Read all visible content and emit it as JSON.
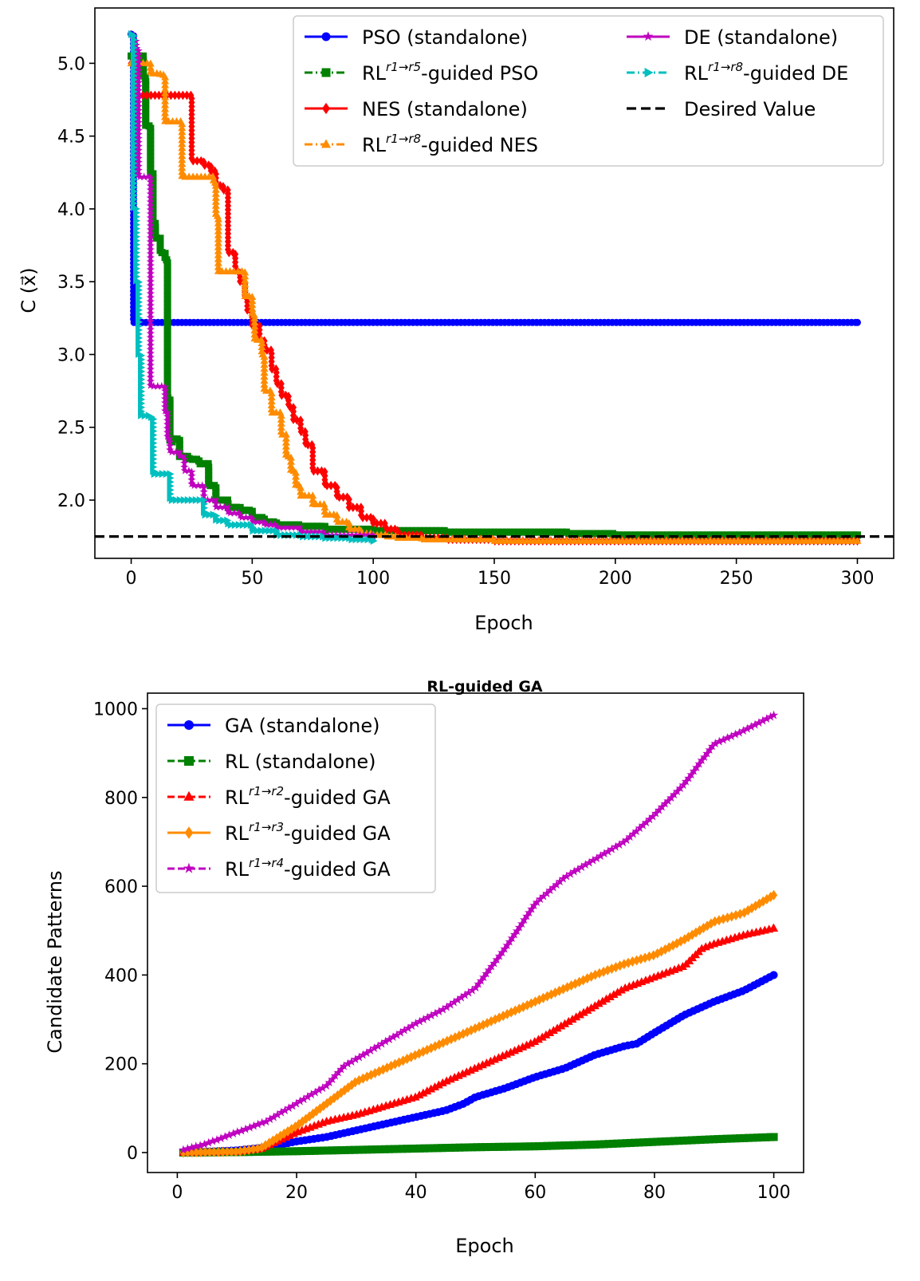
{
  "chart_data": [
    {
      "type": "line",
      "title": "",
      "xlabel": "Epoch",
      "ylabel": "C (x⃗)",
      "xlim": [
        -15,
        315
      ],
      "ylim": [
        1.6,
        5.38
      ],
      "xticks": [
        0,
        50,
        100,
        150,
        200,
        250,
        300
      ],
      "yticks": [
        2.0,
        2.5,
        3.0,
        3.5,
        4.0,
        4.5,
        5.0
      ],
      "ytick_labels": [
        "2.0",
        "2.5",
        "3.0",
        "3.5",
        "4.0",
        "4.5",
        "5.0"
      ],
      "grid": false,
      "legend_position": "top-right",
      "reference_line": {
        "name": "Desired Value",
        "y": 1.75,
        "color": "#000000",
        "style": "dashed"
      },
      "series": [
        {
          "name": "PSO (standalone)",
          "legend": {
            "base": "PSO (standalone)",
            "sup": "",
            "tail": ""
          },
          "color": "#0000ff",
          "style": "solid",
          "marker": "circle",
          "x": [
            0,
            1,
            300
          ],
          "y": [
            5.2,
            3.22,
            3.22
          ]
        },
        {
          "name": "RL r1→r5 -guided PSO",
          "legend": {
            "base": "RL",
            "sup": "r1→r5",
            "tail": "-guided PSO"
          },
          "color": "#008000",
          "style": "dashdot",
          "marker": "square",
          "x": [
            0,
            3,
            5,
            6,
            8,
            9,
            10,
            12,
            14,
            15,
            16,
            17,
            18,
            20,
            24,
            28,
            32,
            35,
            40,
            45,
            50,
            55,
            60,
            70,
            80,
            100,
            130,
            180,
            200,
            300
          ],
          "y": [
            5.05,
            5.05,
            4.9,
            4.57,
            4.25,
            3.9,
            3.8,
            3.7,
            3.65,
            2.7,
            2.4,
            2.42,
            2.42,
            2.3,
            2.28,
            2.25,
            2.1,
            2.0,
            1.95,
            1.93,
            1.88,
            1.85,
            1.83,
            1.82,
            1.8,
            1.79,
            1.78,
            1.77,
            1.76,
            1.76
          ]
        },
        {
          "name": "NES (standalone)",
          "legend": {
            "base": "NES (standalone)",
            "sup": "",
            "tail": ""
          },
          "color": "#ff0000",
          "style": "solid",
          "marker": "diamond",
          "x": [
            0,
            1,
            2,
            3,
            24,
            25,
            30,
            33,
            35,
            38,
            40,
            43,
            45,
            47,
            48,
            50,
            53,
            55,
            58,
            60,
            62,
            65,
            67,
            70,
            72,
            75,
            80,
            85,
            90,
            95,
            100,
            105,
            110,
            120,
            130,
            150,
            300
          ],
          "y": [
            5.0,
            4.96,
            4.78,
            4.78,
            4.78,
            4.33,
            4.3,
            4.26,
            4.16,
            4.13,
            3.7,
            3.57,
            3.5,
            3.4,
            3.3,
            3.2,
            3.1,
            3.03,
            2.9,
            2.8,
            2.72,
            2.64,
            2.55,
            2.47,
            2.38,
            2.2,
            2.1,
            2.02,
            1.95,
            1.88,
            1.84,
            1.8,
            1.76,
            1.74,
            1.73,
            1.72,
            1.72
          ]
        },
        {
          "name": "RL r1→r8 -guided NES",
          "legend": {
            "base": "RL",
            "sup": "r1→r8",
            "tail": "-guided NES"
          },
          "color": "#ff8c00",
          "style": "dashdot",
          "marker": "triangle-up",
          "x": [
            0,
            3,
            8,
            12,
            14,
            20,
            21,
            30,
            34,
            35,
            36,
            45,
            47,
            50,
            51,
            54,
            55,
            58,
            60,
            62,
            64,
            66,
            68,
            70,
            75,
            80,
            85,
            90,
            95,
            100,
            105,
            110,
            120,
            150,
            300
          ],
          "y": [
            5.0,
            5.0,
            4.93,
            4.92,
            4.6,
            4.6,
            4.22,
            4.22,
            4.18,
            3.95,
            3.57,
            3.57,
            3.4,
            3.27,
            3.1,
            3.0,
            2.75,
            2.6,
            2.6,
            2.45,
            2.3,
            2.2,
            2.1,
            2.03,
            1.97,
            1.9,
            1.85,
            1.8,
            1.77,
            1.76,
            1.75,
            1.74,
            1.73,
            1.72,
            1.72
          ]
        },
        {
          "name": "DE (standalone)",
          "legend": {
            "base": "DE (standalone)",
            "sup": "",
            "tail": ""
          },
          "color": "#bf00bf",
          "style": "solid",
          "marker": "star",
          "x": [
            0,
            1,
            2,
            3,
            7,
            8,
            12,
            14,
            15,
            16,
            20,
            22,
            25,
            30,
            35,
            40,
            45,
            50,
            55,
            60,
            70,
            80,
            100
          ],
          "y": [
            5.2,
            5.15,
            5.1,
            4.22,
            4.22,
            2.78,
            2.78,
            2.6,
            2.42,
            2.33,
            2.3,
            2.2,
            2.1,
            2.0,
            1.95,
            1.91,
            1.88,
            1.85,
            1.83,
            1.81,
            1.78,
            1.76,
            1.75
          ]
        },
        {
          "name": "RL r1→r8 -guided DE",
          "legend": {
            "base": "RL",
            "sup": "r1→r8",
            "tail": "-guided DE"
          },
          "color": "#00bfbf",
          "style": "dashdot",
          "marker": "triangle-right",
          "x": [
            0,
            1,
            2,
            3,
            4,
            8,
            9,
            15,
            16,
            22,
            30,
            35,
            40,
            50,
            60,
            70,
            80,
            90,
            100
          ],
          "y": [
            5.2,
            4.0,
            3.5,
            3.0,
            2.58,
            2.57,
            2.18,
            2.18,
            2.0,
            2.0,
            1.9,
            1.86,
            1.83,
            1.79,
            1.76,
            1.75,
            1.74,
            1.73,
            1.72
          ]
        }
      ]
    },
    {
      "type": "line",
      "title": "RL-guided GA",
      "xlabel": "Epoch",
      "ylabel": "Candidate Patterns",
      "xlim": [
        -5,
        105
      ],
      "ylim": [
        -45,
        1035
      ],
      "xticks": [
        0,
        20,
        40,
        60,
        80,
        100
      ],
      "yticks": [
        0,
        200,
        400,
        600,
        800,
        1000
      ],
      "grid": false,
      "legend_position": "top-left",
      "series": [
        {
          "name": "GA (standalone)",
          "legend": {
            "base": "GA (standalone)",
            "sup": "",
            "tail": ""
          },
          "color": "#0000ff",
          "style": "solid",
          "marker": "circle",
          "x": [
            1,
            10,
            15,
            20,
            25,
            30,
            35,
            40,
            45,
            48,
            50,
            55,
            60,
            65,
            70,
            75,
            77,
            80,
            85,
            90,
            95,
            100
          ],
          "y": [
            0,
            5,
            12,
            25,
            35,
            50,
            65,
            80,
            95,
            110,
            125,
            145,
            170,
            190,
            220,
            240,
            245,
            270,
            310,
            340,
            365,
            400
          ]
        },
        {
          "name": "RL (standalone)",
          "legend": {
            "base": "RL (standalone)",
            "sup": "",
            "tail": ""
          },
          "color": "#008000",
          "style": "dashed",
          "marker": "square",
          "x": [
            1,
            10,
            20,
            30,
            40,
            50,
            60,
            70,
            80,
            90,
            100
          ],
          "y": [
            0,
            1,
            3,
            6,
            9,
            12,
            14,
            18,
            24,
            30,
            35
          ]
        },
        {
          "name": "RL r1→r2 -guided GA",
          "legend": {
            "base": "RL",
            "sup": "r1→r2",
            "tail": "-guided GA"
          },
          "color": "#ff0000",
          "style": "dashed",
          "marker": "triangle-up",
          "x": [
            1,
            10,
            14,
            20,
            25,
            30,
            35,
            40,
            45,
            50,
            55,
            60,
            65,
            70,
            75,
            80,
            85,
            88,
            90,
            95,
            100
          ],
          "y": [
            0,
            2,
            8,
            45,
            70,
            85,
            105,
            125,
            160,
            190,
            220,
            250,
            290,
            330,
            370,
            395,
            420,
            460,
            470,
            490,
            505
          ]
        },
        {
          "name": "RL r1→r3 -guided GA",
          "legend": {
            "base": "RL",
            "sup": "r1→r3",
            "tail": "-guided GA"
          },
          "color": "#ff8c00",
          "style": "solid",
          "marker": "diamond",
          "x": [
            1,
            10,
            14,
            20,
            25,
            30,
            35,
            40,
            45,
            50,
            55,
            60,
            65,
            70,
            75,
            80,
            85,
            90,
            95,
            100
          ],
          "y": [
            0,
            2,
            10,
            60,
            110,
            160,
            190,
            220,
            250,
            280,
            310,
            340,
            370,
            400,
            425,
            445,
            480,
            520,
            540,
            580
          ]
        },
        {
          "name": "RL r1→r4 -guided GA",
          "legend": {
            "base": "RL",
            "sup": "r1→r4",
            "tail": "-guided GA"
          },
          "color": "#bf00bf",
          "style": "dashed",
          "marker": "star",
          "x": [
            1,
            5,
            10,
            15,
            20,
            25,
            28,
            30,
            35,
            40,
            45,
            50,
            55,
            60,
            65,
            70,
            75,
            80,
            85,
            90,
            95,
            100
          ],
          "y": [
            5,
            20,
            45,
            70,
            110,
            150,
            195,
            210,
            250,
            290,
            325,
            370,
            460,
            560,
            620,
            660,
            700,
            760,
            830,
            920,
            950,
            985
          ]
        }
      ]
    }
  ]
}
